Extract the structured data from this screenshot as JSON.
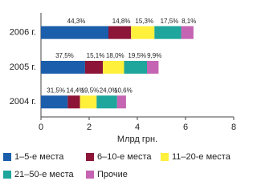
{
  "chart_data": {
    "type": "stacked-bar-horizontal",
    "categories": [
      "2006 г.",
      "2005 г.",
      "2004 г."
    ],
    "xlabel": "Млрд грн.",
    "xlim": [
      0,
      8
    ],
    "xticks": [
      0,
      2,
      4,
      6,
      8
    ],
    "series": [
      {
        "name": "1–5-е места",
        "color": "#1b5eab",
        "values": [
          2.8,
          1.83,
          1.11
        ],
        "value_labels": [
          "44,3%",
          "37,5%",
          "31,5%"
        ]
      },
      {
        "name": "6–10-е места",
        "color": "#8c1538",
        "values": [
          0.94,
          0.74,
          0.51
        ],
        "value_labels": [
          "14,8%",
          "15,1%",
          "14,4%"
        ]
      },
      {
        "name": "11–20-е места",
        "color": "#fff03c",
        "values": [
          0.97,
          0.88,
          0.69
        ],
        "value_labels": [
          "15,3%",
          "18,0%",
          "19,5%"
        ]
      },
      {
        "name": "21–50-е места",
        "color": "#1ea69c",
        "values": [
          1.11,
          0.95,
          0.85
        ],
        "value_labels": [
          "17,5%",
          "19,5%",
          "24,0%"
        ]
      },
      {
        "name": "Прочие",
        "color": "#c564b2",
        "values": [
          0.51,
          0.48,
          0.37
        ],
        "value_labels": [
          "8,1%",
          "9,9%",
          "10,6%"
        ]
      }
    ]
  }
}
